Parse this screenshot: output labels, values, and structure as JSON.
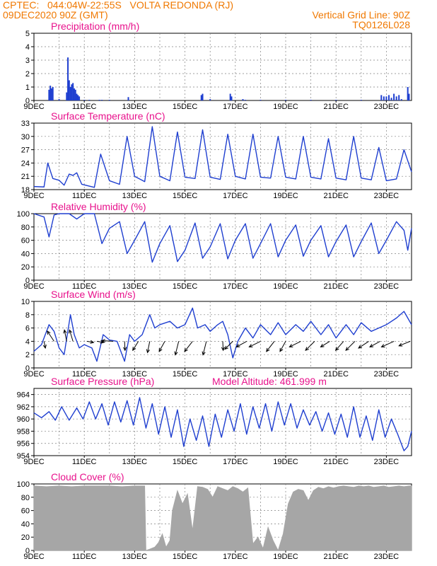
{
  "header": {
    "line1": "CPTEC:   044:04W-22:55S   VOLTA REDONDA (RJ)",
    "line2_left": "09DEC2020 90Z (GMT)",
    "line2_right": "Vertical Grid Line: 90Z",
    "line3_right": "TQ0126L028"
  },
  "colors": {
    "header": "#f07800",
    "title": "#e8128c",
    "series": "#1f3fd0",
    "bars": "#1f3fd0",
    "cloud": "#a6a6a6",
    "grid": "#808080"
  },
  "x_axis": {
    "start_day": 9,
    "end_day": 24,
    "ticks": [
      {
        "day": 9,
        "label": "9DEC"
      },
      {
        "day": 11,
        "label": "11DEC"
      },
      {
        "day": 13,
        "label": "13DEC"
      },
      {
        "day": 15,
        "label": "15DEC"
      },
      {
        "day": 17,
        "label": "17DEC"
      },
      {
        "day": 19,
        "label": "19DEC"
      },
      {
        "day": 21,
        "label": "21DEC"
      },
      {
        "day": 23,
        "label": "23DEC"
      }
    ]
  },
  "chart_data": [
    {
      "id": "precip",
      "type": "bar",
      "title": "Precipitation  (mm/h)",
      "ylim": [
        0,
        5
      ],
      "yticks": [
        0,
        1,
        2,
        3,
        4,
        5
      ],
      "x": [
        9.6,
        9.65,
        9.7,
        9.75,
        10.0,
        10.3,
        10.35,
        10.4,
        10.45,
        10.5,
        10.55,
        10.6,
        10.65,
        10.7,
        10.75,
        10.8,
        11.0,
        11.2,
        11.6,
        11.7,
        12.0,
        12.75,
        15.65,
        15.7,
        16.0,
        16.8,
        16.85,
        17.3,
        17.4,
        18.0,
        19.0,
        20.0,
        21.0,
        22.0,
        22.8,
        22.9,
        23.0,
        23.1,
        23.2,
        23.3,
        23.4,
        23.5,
        23.6,
        23.85,
        23.9
      ],
      "values": [
        0.8,
        1.1,
        0.9,
        1.0,
        0.1,
        0.6,
        3.2,
        1.5,
        1.0,
        1.2,
        1.3,
        0.9,
        0.8,
        0.5,
        0.4,
        0.3,
        0.05,
        0.05,
        0.05,
        0.05,
        0.05,
        0.25,
        0.4,
        0.5,
        0.1,
        0.5,
        0.3,
        0.1,
        0.05,
        0.05,
        0.05,
        0.05,
        0.05,
        0.05,
        0.4,
        0.3,
        0.3,
        0.4,
        0.2,
        0.5,
        0.3,
        0.4,
        0.1,
        1.0,
        0.5
      ]
    },
    {
      "id": "temp",
      "type": "line",
      "title": "Surface Temperature (nC)",
      "ylim": [
        18,
        33
      ],
      "yticks": [
        18,
        21,
        24,
        27,
        30,
        33
      ],
      "x": [
        9.0,
        9.4,
        9.55,
        9.75,
        10.0,
        10.2,
        10.4,
        10.55,
        10.7,
        10.9,
        11.4,
        11.65,
        12.0,
        12.4,
        12.7,
        13.0,
        13.4,
        13.7,
        14.0,
        14.4,
        14.7,
        15.0,
        15.4,
        15.7,
        16.0,
        16.4,
        16.7,
        17.0,
        17.4,
        17.7,
        18.0,
        18.4,
        18.7,
        19.0,
        19.4,
        19.7,
        20.0,
        20.4,
        20.7,
        21.0,
        21.4,
        21.7,
        22.0,
        22.4,
        22.7,
        23.0,
        23.4,
        23.7,
        24.0
      ],
      "values": [
        18.7,
        18.6,
        24.0,
        20.5,
        20.1,
        19.0,
        21.5,
        21.2,
        21.8,
        19.2,
        18.5,
        26.0,
        20.0,
        19.2,
        30.0,
        21.0,
        19.8,
        32.2,
        21.0,
        20.0,
        31.0,
        20.8,
        20.5,
        31.5,
        20.8,
        20.3,
        30.5,
        21.0,
        20.4,
        30.5,
        20.8,
        20.6,
        30.0,
        20.8,
        20.4,
        30.0,
        20.8,
        20.4,
        29.5,
        20.6,
        20.2,
        30.0,
        20.6,
        20.2,
        27.5,
        20.0,
        20.4,
        27.0,
        22.0
      ]
    },
    {
      "id": "rh",
      "type": "line",
      "title": "Relative Humidity  (%)",
      "ylim": [
        0,
        100
      ],
      "yticks": [
        0,
        20,
        40,
        60,
        80,
        100
      ],
      "x": [
        9.0,
        9.4,
        9.6,
        9.8,
        10.0,
        10.4,
        10.7,
        11.0,
        11.4,
        11.7,
        12.0,
        12.4,
        12.7,
        13.0,
        13.4,
        13.7,
        14.0,
        14.4,
        14.7,
        15.0,
        15.4,
        15.7,
        16.0,
        16.4,
        16.7,
        17.0,
        17.4,
        17.7,
        18.0,
        18.4,
        18.7,
        19.0,
        19.4,
        19.7,
        20.0,
        20.4,
        20.7,
        21.0,
        21.4,
        21.7,
        22.0,
        22.4,
        22.7,
        23.0,
        23.4,
        23.7,
        23.85,
        24.0
      ],
      "values": [
        100,
        95,
        65,
        98,
        100,
        100,
        92,
        100,
        100,
        55,
        78,
        88,
        40,
        60,
        88,
        27,
        55,
        82,
        28,
        45,
        86,
        33,
        50,
        85,
        32,
        60,
        85,
        33,
        55,
        85,
        35,
        60,
        83,
        36,
        60,
        82,
        35,
        58,
        83,
        35,
        58,
        86,
        40,
        60,
        88,
        75,
        45,
        78
      ]
    },
    {
      "id": "wind",
      "type": "line",
      "title": "Surface Wind  (m/s)",
      "ylim": [
        0,
        10
      ],
      "yticks": [
        0,
        2,
        4,
        6,
        8,
        10
      ],
      "x": [
        9.0,
        9.3,
        9.6,
        9.8,
        10.0,
        10.2,
        10.45,
        10.6,
        10.8,
        11.0,
        11.3,
        11.5,
        11.75,
        12.0,
        12.3,
        12.6,
        12.8,
        13.0,
        13.3,
        13.6,
        13.8,
        14.0,
        14.4,
        14.7,
        15.0,
        15.3,
        15.5,
        15.8,
        16.0,
        16.3,
        16.5,
        16.7,
        16.9,
        17.1,
        17.4,
        17.7,
        18.0,
        18.4,
        18.7,
        19.0,
        19.4,
        19.7,
        20.0,
        20.4,
        20.7,
        21.0,
        21.4,
        21.7,
        22.0,
        22.4,
        22.7,
        23.0,
        23.4,
        23.7,
        24.0
      ],
      "values": [
        2.5,
        3.5,
        6.5,
        5.5,
        3.0,
        2.0,
        8.0,
        5.0,
        3.0,
        3.5,
        3.0,
        1.0,
        5.0,
        4.2,
        4.0,
        1.0,
        5.0,
        4.0,
        5.0,
        8.0,
        6.0,
        6.5,
        7.0,
        6.0,
        6.5,
        9.0,
        6.0,
        6.5,
        5.5,
        6.5,
        7.0,
        5.0,
        1.5,
        4.0,
        6.0,
        4.5,
        6.5,
        5.0,
        6.8,
        5.0,
        6.5,
        5.5,
        7.0,
        5.0,
        6.5,
        4.5,
        6.5,
        5.0,
        6.8,
        5.5,
        6.0,
        6.5,
        7.5,
        8.5,
        6.5
      ]
    },
    {
      "id": "pressure",
      "type": "line",
      "title": "Surface Pressure (hPa)",
      "annotation": "Model Altitude: 461.999  m",
      "ylim": [
        954,
        965
      ],
      "yticks": [
        954,
        956,
        958,
        960,
        962,
        964
      ],
      "x": [
        9.0,
        9.3,
        9.6,
        9.85,
        10.1,
        10.4,
        10.7,
        10.95,
        11.2,
        11.45,
        11.7,
        11.95,
        12.2,
        12.45,
        12.7,
        12.95,
        13.2,
        13.45,
        13.7,
        13.95,
        14.2,
        14.45,
        14.7,
        14.95,
        15.2,
        15.45,
        15.7,
        15.95,
        16.2,
        16.45,
        16.7,
        16.95,
        17.2,
        17.45,
        17.7,
        17.95,
        18.2,
        18.45,
        18.7,
        18.95,
        19.2,
        19.45,
        19.7,
        19.95,
        20.2,
        20.45,
        20.7,
        20.95,
        21.2,
        21.45,
        21.7,
        21.95,
        22.2,
        22.45,
        22.7,
        22.95,
        23.2,
        23.45,
        23.7,
        23.85,
        24.0
      ],
      "values": [
        961.0,
        960.2,
        961.2,
        959.8,
        962.0,
        959.8,
        961.8,
        960.0,
        962.8,
        960.0,
        962.5,
        959.0,
        962.8,
        959.5,
        963.0,
        959.0,
        963.5,
        958.5,
        962.5,
        957.5,
        962.0,
        957.0,
        961.5,
        955.5,
        960.0,
        956.5,
        960.5,
        955.5,
        960.8,
        957.0,
        961.5,
        958.0,
        962.5,
        957.5,
        962.0,
        958.5,
        962.5,
        958.0,
        962.8,
        959.0,
        962.5,
        958.5,
        961.5,
        959.0,
        961.2,
        958.0,
        961.0,
        957.5,
        960.8,
        957.0,
        962.0,
        957.0,
        960.5,
        956.5,
        961.5,
        957.0,
        960.0,
        957.5,
        954.8,
        955.5,
        958.0
      ]
    },
    {
      "id": "cloud",
      "type": "area",
      "title": "Cloud Cover  (%)",
      "ylim": [
        0,
        100
      ],
      "yticks": [
        0,
        20,
        40,
        60,
        80,
        100
      ],
      "x": [
        9.0,
        9.5,
        10.0,
        10.5,
        11.0,
        11.5,
        12.0,
        12.5,
        13.0,
        13.4,
        13.45,
        13.6,
        13.8,
        13.95,
        14.1,
        14.25,
        14.4,
        14.5,
        14.7,
        14.9,
        15.1,
        15.3,
        15.5,
        15.7,
        15.9,
        16.1,
        16.3,
        16.5,
        16.7,
        16.9,
        17.1,
        17.3,
        17.5,
        17.7,
        17.9,
        18.1,
        18.3,
        18.5,
        18.7,
        18.9,
        19.1,
        19.3,
        19.5,
        19.7,
        19.9,
        20.1,
        20.3,
        20.5,
        20.7,
        20.9,
        21.1,
        21.3,
        21.5,
        21.7,
        21.9,
        22.1,
        22.3,
        22.5,
        22.7,
        22.9,
        23.1,
        23.3,
        23.5,
        23.7,
        23.9,
        24.0
      ],
      "values": [
        97,
        96,
        97,
        96,
        97,
        97,
        97,
        96,
        97,
        97,
        0,
        2,
        5,
        12,
        25,
        5,
        15,
        60,
        90,
        70,
        85,
        30,
        96,
        95,
        92,
        80,
        96,
        93,
        90,
        96,
        93,
        88,
        94,
        10,
        20,
        3,
        35,
        15,
        0,
        25,
        70,
        88,
        92,
        90,
        75,
        90,
        95,
        93,
        96,
        94,
        96,
        97,
        96,
        95,
        97,
        96,
        97,
        95,
        96,
        97,
        95,
        96,
        97,
        96,
        97,
        97
      ]
    }
  ],
  "wind_vectors": [
    {
      "day": 9.4,
      "u": 0.6,
      "v": -3.0
    },
    {
      "day": 9.8,
      "u": -3.0,
      "v": 4.5
    },
    {
      "day": 10.3,
      "u": -1.0,
      "v": 5.0
    },
    {
      "day": 10.55,
      "u": -1.5,
      "v": 5.0
    },
    {
      "day": 11.1,
      "u": 3.0,
      "v": -0.5
    },
    {
      "day": 11.5,
      "u": 3.0,
      "v": -0.5
    },
    {
      "day": 12.15,
      "u": -5.0,
      "v": 0.3
    },
    {
      "day": 12.6,
      "u": 0.2,
      "v": -4.0
    },
    {
      "day": 13.15,
      "u": -2.5,
      "v": -4.0
    },
    {
      "day": 13.6,
      "u": -1.0,
      "v": -5.0
    },
    {
      "day": 14.2,
      "u": -2.5,
      "v": -4.5
    },
    {
      "day": 14.75,
      "u": -1.5,
      "v": -6.0
    },
    {
      "day": 15.3,
      "u": -3.5,
      "v": -4.5
    },
    {
      "day": 15.85,
      "u": -1.5,
      "v": -6.0
    },
    {
      "day": 16.5,
      "u": 0.2,
      "v": -4.0
    },
    {
      "day": 16.9,
      "u": -3.5,
      "v": -3.5
    },
    {
      "day": 17.45,
      "u": -4.5,
      "v": -2.5
    },
    {
      "day": 18.0,
      "u": -5.0,
      "v": -2.5
    },
    {
      "day": 18.55,
      "u": -3.5,
      "v": -4.5
    },
    {
      "day": 19.0,
      "u": -2.5,
      "v": -4.5
    },
    {
      "day": 19.6,
      "u": -5.0,
      "v": -2.5
    },
    {
      "day": 20.15,
      "u": -4.0,
      "v": -4.0
    },
    {
      "day": 20.75,
      "u": -4.0,
      "v": -2.5
    },
    {
      "day": 21.3,
      "u": -3.5,
      "v": -4.0
    },
    {
      "day": 21.75,
      "u": -4.0,
      "v": -4.0
    },
    {
      "day": 22.3,
      "u": -4.5,
      "v": -3.0
    },
    {
      "day": 22.75,
      "u": -4.5,
      "v": -2.5
    },
    {
      "day": 23.3,
      "u": -5.5,
      "v": -2.5
    },
    {
      "day": 23.95,
      "u": -5.0,
      "v": -2.0
    }
  ]
}
